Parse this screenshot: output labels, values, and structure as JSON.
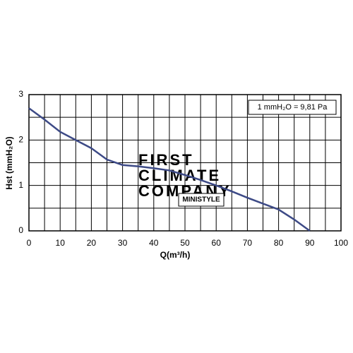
{
  "chart_data": {
    "type": "line",
    "x_label": "Q(m³/h)",
    "y_label": "Hst (mmH₂O)",
    "annotations": [
      "1 mmH₂O = 9,81 Pa",
      "MINISTYLE"
    ],
    "watermark": [
      "FIRST",
      "CLIMATE",
      "COMPANY"
    ],
    "x": [
      0,
      5,
      10,
      15,
      20,
      25,
      30,
      35,
      40,
      45,
      50,
      55,
      60,
      65,
      70,
      75,
      80,
      85,
      90
    ],
    "series": [
      {
        "name": "MINISTYLE",
        "color": "#3d4a86",
        "values": [
          2.7,
          2.45,
          2.18,
          2.0,
          1.82,
          1.57,
          1.45,
          1.42,
          1.38,
          1.33,
          1.23,
          1.12,
          1.0,
          0.87,
          0.73,
          0.6,
          0.47,
          0.25,
          0
        ]
      }
    ],
    "xlim": [
      0,
      100
    ],
    "xticks": [
      0,
      10,
      20,
      30,
      40,
      50,
      60,
      70,
      80,
      90,
      100
    ],
    "x_minor_ticks": [
      5,
      15,
      25,
      35,
      45,
      55,
      65,
      75,
      85,
      95
    ],
    "ylim": [
      0,
      3
    ],
    "yticks": [
      0,
      1,
      2,
      3
    ],
    "y_minor_ticks": [
      0.5,
      1.5,
      2.5
    ],
    "grid": true
  }
}
